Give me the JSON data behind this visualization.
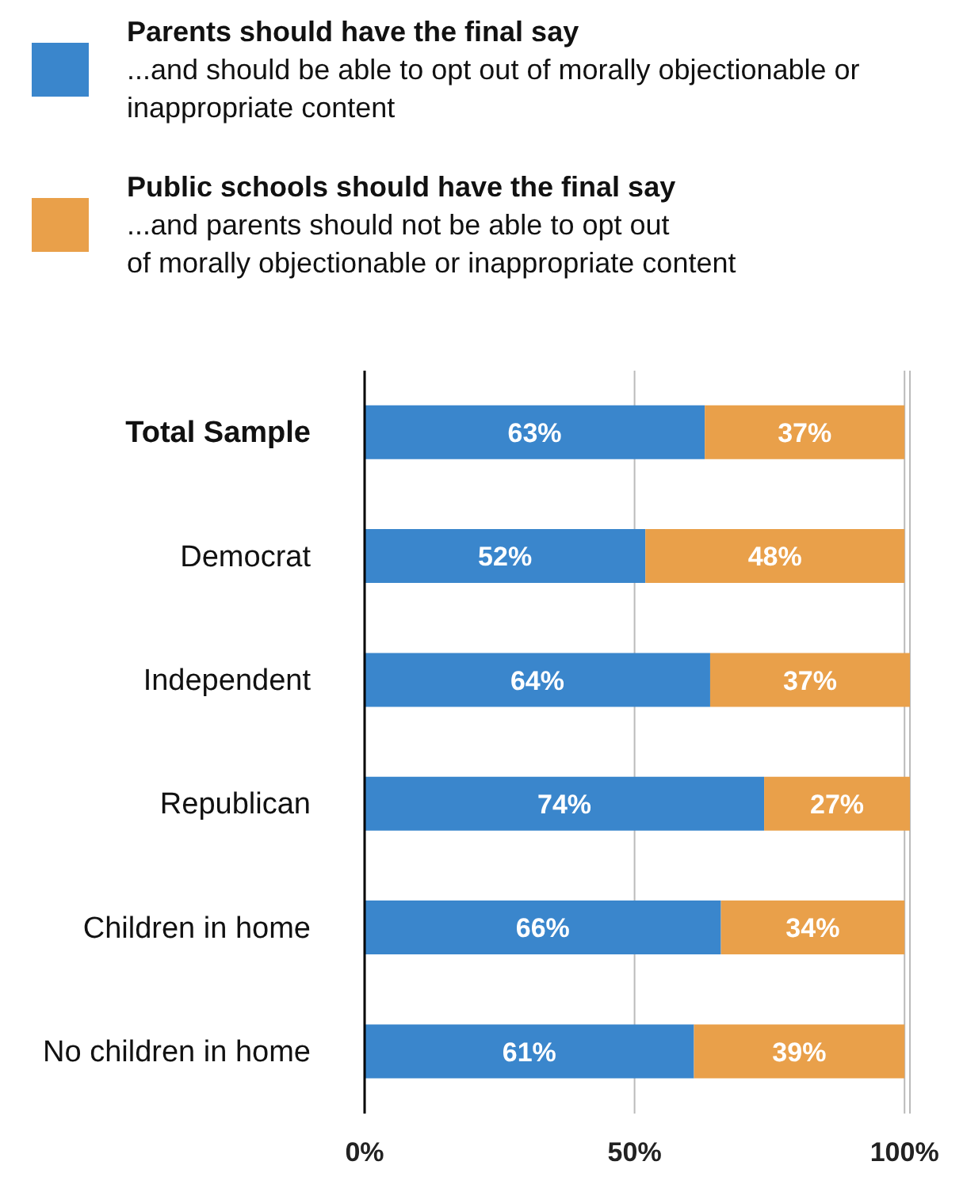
{
  "chart_data": {
    "type": "bar",
    "orientation": "horizontal",
    "stacked": true,
    "categories": [
      "Total Sample",
      "Democrat",
      "Independent",
      "Republican",
      "Children in home",
      "No children in home"
    ],
    "series": [
      {
        "name": "Parents should have the final say\n...and should be able to opt out of morally objectionable or inappropriate content",
        "color": "#3a86cc",
        "values": [
          63,
          52,
          64,
          74,
          66,
          61
        ],
        "value_labels": [
          "63%",
          "52%",
          "64%",
          "74%",
          "66%",
          "61%"
        ]
      },
      {
        "name": "Public schools should have the final say\n...and parents should not be able to opt out\nof morally objectionable or inappropriate content",
        "color": "#e9a04a",
        "values": [
          37,
          48,
          37,
          27,
          34,
          39
        ],
        "value_labels": [
          "37%",
          "48%",
          "37%",
          "27%",
          "34%",
          "39%"
        ]
      }
    ],
    "xlim": [
      0,
      101
    ],
    "xticks": [
      {
        "value": 0,
        "label": "0%"
      },
      {
        "value": 50,
        "label": "50%"
      },
      {
        "value": 100,
        "label": "100%"
      }
    ],
    "grid": "x",
    "legend": "top"
  }
}
